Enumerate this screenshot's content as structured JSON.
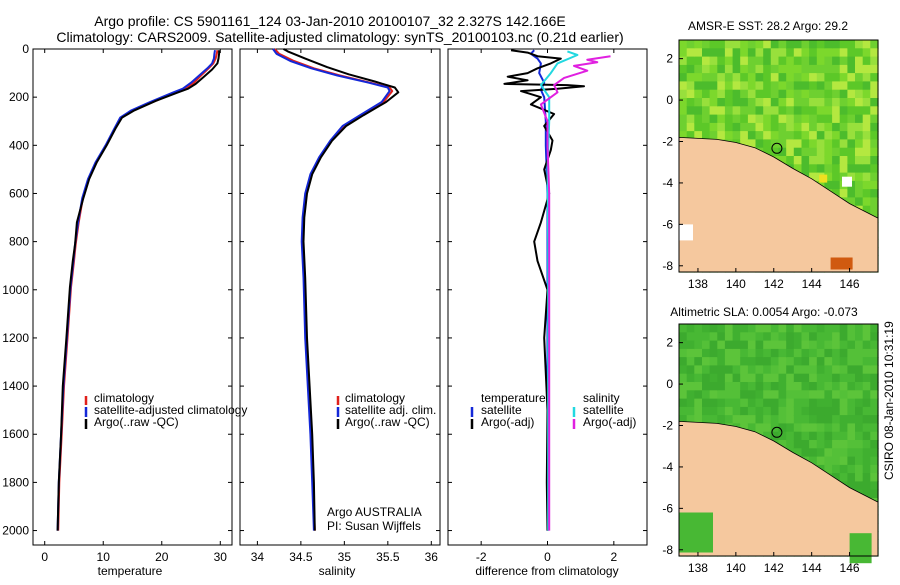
{
  "header": {
    "line1": "Argo profile: CS 5901161_124 03-Jan-2010 20100107_32 2.327S 142.166E",
    "line2": "Climatology: CARS2009. Satellite-adjusted climatology: synTS_20100103.nc (0.21d earlier)"
  },
  "footer": {
    "credit": "CSIRO 08-Jan-2010 10:31:19"
  },
  "colors": {
    "climatology": "#e0201c",
    "satellite": "#1428d8",
    "argo": "#000000",
    "sal_satellite": "#22d8e0",
    "sal_argo": "#e020e0",
    "land": "#f5c89e"
  },
  "chart_data": [
    {
      "type": "line",
      "xlabel": "temperature",
      "ylabel": "",
      "xlim": [
        -2,
        32
      ],
      "ylim": [
        2060,
        0
      ],
      "xticks": [
        0,
        10,
        20,
        30
      ],
      "yticks": [
        0,
        200,
        400,
        600,
        800,
        1000,
        1200,
        1400,
        1600,
        1800,
        2000
      ],
      "legend": [
        "climatology",
        "satellite-adjusted climatology",
        "Argo(..raw -QC)"
      ],
      "legend_placement": "lower-right",
      "series": [
        {
          "name": "climatology",
          "color": "#e0201c",
          "points": [
            [
              29.5,
              5
            ],
            [
              29.4,
              20
            ],
            [
              29.2,
              40
            ],
            [
              28.8,
              60
            ],
            [
              28,
              80
            ],
            [
              26.7,
              110
            ],
            [
              25.5,
              140
            ],
            [
              24,
              165
            ],
            [
              22.5,
              180
            ],
            [
              18.5,
              220
            ],
            [
              15,
              255
            ],
            [
              13,
              285
            ],
            [
              12,
              330
            ],
            [
              10.5,
              400
            ],
            [
              8.8,
              470
            ],
            [
              7.5,
              540
            ],
            [
              6.5,
              620
            ],
            [
              5.8,
              720
            ],
            [
              5.3,
              810
            ],
            [
              5,
              880
            ],
            [
              4.5,
              990
            ],
            [
              3.9,
              1200
            ],
            [
              3.3,
              1400
            ],
            [
              2.9,
              1600
            ],
            [
              2.5,
              1800
            ],
            [
              2.3,
              2000
            ]
          ]
        },
        {
          "name": "satellite-adjusted climatology",
          "color": "#1428d8",
          "points": [
            [
              29.1,
              5
            ],
            [
              29,
              20
            ],
            [
              28.9,
              40
            ],
            [
              28.6,
              60
            ],
            [
              27.8,
              80
            ],
            [
              26.4,
              110
            ],
            [
              25,
              140
            ],
            [
              23.6,
              165
            ],
            [
              22,
              180
            ],
            [
              18,
              220
            ],
            [
              14.8,
              255
            ],
            [
              12.9,
              285
            ],
            [
              11.9,
              330
            ],
            [
              10.4,
              400
            ],
            [
              8.7,
              470
            ],
            [
              7.4,
              540
            ],
            [
              6.4,
              620
            ],
            [
              5.7,
              720
            ],
            [
              5.2,
              810
            ],
            [
              4.9,
              880
            ],
            [
              4.4,
              990
            ],
            [
              3.8,
              1200
            ],
            [
              3.2,
              1400
            ],
            [
              2.8,
              1600
            ],
            [
              2.4,
              1800
            ],
            [
              2.2,
              2000
            ]
          ]
        },
        {
          "name": "Argo(..raw -QC)",
          "color": "#000000",
          "points": [
            [
              29.8,
              5
            ],
            [
              29.8,
              20
            ],
            [
              29.7,
              40
            ],
            [
              29.5,
              60
            ],
            [
              28.6,
              85
            ],
            [
              27.2,
              115
            ],
            [
              25.8,
              145
            ],
            [
              24.5,
              165
            ],
            [
              22.8,
              180
            ],
            [
              19,
              215
            ],
            [
              15.3,
              255
            ],
            [
              13.2,
              285
            ],
            [
              12.1,
              330
            ],
            [
              10.6,
              400
            ],
            [
              8.9,
              470
            ],
            [
              7.6,
              540
            ],
            [
              6.6,
              620
            ],
            [
              5.5,
              720
            ],
            [
              5.2,
              810
            ],
            [
              4.8,
              880
            ],
            [
              4.3,
              990
            ],
            [
              3.7,
              1200
            ],
            [
              3.1,
              1400
            ],
            [
              2.8,
              1600
            ],
            [
              2.4,
              1800
            ],
            [
              2.2,
              2000
            ]
          ]
        }
      ]
    },
    {
      "type": "line",
      "xlabel": "salinity",
      "ylabel": "",
      "xlim": [
        33.8,
        36.1
      ],
      "ylim": [
        2060,
        0
      ],
      "xticks": [
        34,
        34.5,
        35,
        35.5,
        36
      ],
      "xticklabels": [
        "34",
        "34.5",
        "35",
        "35.5",
        "36"
      ],
      "yticks": [
        0,
        200,
        400,
        600,
        800,
        1000,
        1200,
        1400,
        1600,
        1800,
        2000
      ],
      "legend": [
        "climatology",
        "satellite adj. clim.",
        "Argo(..raw -QC)"
      ],
      "legend_placement": "lower-right",
      "annotation": [
        "Argo AUSTRALIA",
        "PI: Susan Wijffels"
      ],
      "series": [
        {
          "name": "climatology",
          "color": "#e0201c",
          "points": [
            [
              34.2,
              0
            ],
            [
              34.25,
              20
            ],
            [
              34.42,
              50
            ],
            [
              34.65,
              80
            ],
            [
              34.95,
              110
            ],
            [
              35.3,
              140
            ],
            [
              35.52,
              160
            ],
            [
              35.55,
              175
            ],
            [
              35.45,
              220
            ],
            [
              35.2,
              275
            ],
            [
              35,
              320
            ],
            [
              34.85,
              380
            ],
            [
              34.72,
              450
            ],
            [
              34.62,
              520
            ],
            [
              34.56,
              600
            ],
            [
              34.53,
              700
            ],
            [
              34.52,
              800
            ],
            [
              34.54,
              950
            ],
            [
              34.56,
              1200
            ],
            [
              34.59,
              1400
            ],
            [
              34.62,
              1600
            ],
            [
              34.64,
              1800
            ],
            [
              34.66,
              2000
            ]
          ]
        },
        {
          "name": "satellite adj. clim.",
          "color": "#1428d8",
          "points": [
            [
              34.18,
              0
            ],
            [
              34.22,
              20
            ],
            [
              34.38,
              50
            ],
            [
              34.62,
              80
            ],
            [
              34.92,
              110
            ],
            [
              35.28,
              140
            ],
            [
              35.5,
              160
            ],
            [
              35.52,
              175
            ],
            [
              35.43,
              220
            ],
            [
              35.18,
              275
            ],
            [
              34.98,
              320
            ],
            [
              34.84,
              380
            ],
            [
              34.71,
              450
            ],
            [
              34.61,
              520
            ],
            [
              34.55,
              600
            ],
            [
              34.52,
              700
            ],
            [
              34.51,
              800
            ],
            [
              34.53,
              950
            ],
            [
              34.55,
              1200
            ],
            [
              34.58,
              1400
            ],
            [
              34.61,
              1600
            ],
            [
              34.63,
              1800
            ],
            [
              34.65,
              2000
            ]
          ]
        },
        {
          "name": "Argo(..raw -QC)",
          "color": "#000000",
          "points": [
            [
              34.3,
              0
            ],
            [
              34.35,
              10
            ],
            [
              34.55,
              40
            ],
            [
              34.8,
              75
            ],
            [
              35.05,
              105
            ],
            [
              35.35,
              135
            ],
            [
              35.58,
              160
            ],
            [
              35.62,
              180
            ],
            [
              35.48,
              220
            ],
            [
              35.22,
              275
            ],
            [
              35.02,
              320
            ],
            [
              34.86,
              380
            ],
            [
              34.73,
              450
            ],
            [
              34.63,
              520
            ],
            [
              34.57,
              600
            ],
            [
              34.54,
              700
            ],
            [
              34.53,
              800
            ],
            [
              34.55,
              950
            ],
            [
              34.57,
              1200
            ],
            [
              34.6,
              1400
            ],
            [
              34.63,
              1600
            ],
            [
              34.65,
              1800
            ],
            [
              34.66,
              2000
            ]
          ]
        }
      ]
    },
    {
      "type": "line",
      "xlabel": "difference from climatology",
      "ylabel": "",
      "xlim": [
        -3,
        3
      ],
      "ylim": [
        2060,
        0
      ],
      "xticks": [
        -2,
        0,
        2
      ],
      "yticks": [
        0,
        200,
        400,
        600,
        800,
        1000,
        1200,
        1400,
        1600,
        1800,
        2000
      ],
      "legend_headers": [
        "temperature",
        "salinity"
      ],
      "legend": [
        "satellite",
        "Argo(-adj)",
        "satellite",
        "Argo(-adj)"
      ],
      "legend_placement": "lower-center",
      "series": [
        {
          "name": "satellite",
          "color": "#1428d8",
          "points": [
            [
              -0.4,
              5
            ],
            [
              -0.5,
              20
            ],
            [
              -0.3,
              40
            ],
            [
              -0.2,
              60
            ],
            [
              -0.25,
              100
            ],
            [
              -0.1,
              140
            ],
            [
              -0.2,
              170
            ],
            [
              -0.1,
              200
            ],
            [
              -0.05,
              300
            ],
            [
              -0.05,
              400
            ],
            [
              0,
              600
            ],
            [
              0,
              1000
            ],
            [
              0,
              1400
            ],
            [
              0,
              2000
            ]
          ]
        },
        {
          "name": "Argo(-adj)",
          "color": "#000000",
          "points": [
            [
              -1.1,
              5
            ],
            [
              -0.6,
              15
            ],
            [
              -0.3,
              30
            ],
            [
              0.4,
              40
            ],
            [
              0.1,
              60
            ],
            [
              -0.3,
              80
            ],
            [
              -0.6,
              100
            ],
            [
              -1.2,
              115
            ],
            [
              -0.6,
              130
            ],
            [
              -1.3,
              145
            ],
            [
              0.6,
              150
            ],
            [
              1.1,
              155
            ],
            [
              0.3,
              165
            ],
            [
              -0.8,
              175
            ],
            [
              -0.2,
              200
            ],
            [
              -0.5,
              230
            ],
            [
              0.2,
              270
            ],
            [
              -0.1,
              320
            ],
            [
              0.15,
              380
            ],
            [
              0.1,
              420
            ],
            [
              -0.1,
              500
            ],
            [
              0.05,
              600
            ],
            [
              -0.2,
              720
            ],
            [
              -0.4,
              800
            ],
            [
              -0.3,
              880
            ],
            [
              0,
              1000
            ],
            [
              -0.1,
              1200
            ],
            [
              0,
              1500
            ],
            [
              -0.02,
              1800
            ],
            [
              0,
              2000
            ]
          ]
        },
        {
          "name": "satellite",
          "color": "#22d8e0",
          "points": [
            [
              0.6,
              10
            ],
            [
              0.9,
              25
            ],
            [
              0.3,
              60
            ],
            [
              0.1,
              100
            ],
            [
              -0.2,
              150
            ],
            [
              0.05,
              200
            ],
            [
              0.05,
              300
            ],
            [
              0,
              500
            ],
            [
              0.02,
              800
            ],
            [
              0.02,
              1200
            ],
            [
              0.02,
              1600
            ],
            [
              0.02,
              2000
            ]
          ]
        },
        {
          "name": "Argo(-adj)",
          "color": "#e020e0",
          "points": [
            [
              1.9,
              30
            ],
            [
              1.2,
              45
            ],
            [
              1.5,
              55
            ],
            [
              0.8,
              70
            ],
            [
              1.2,
              90
            ],
            [
              0.5,
              120
            ],
            [
              0.2,
              150
            ],
            [
              0.3,
              180
            ],
            [
              -0.2,
              230
            ],
            [
              0,
              300
            ],
            [
              0,
              400
            ],
            [
              0.05,
              600
            ],
            [
              0.05,
              900
            ],
            [
              0.05,
              1300
            ],
            [
              0.05,
              1700
            ],
            [
              0.05,
              2000
            ]
          ]
        }
      ]
    },
    {
      "type": "heatmap",
      "title": "AMSR-E SST: 28.2 Argo: 29.2",
      "xlim": [
        137,
        147.5
      ],
      "ylim": [
        -8.3,
        2.9
      ],
      "xticks": [
        138,
        140,
        142,
        144,
        146
      ],
      "yticks": [
        2,
        0,
        -2,
        -4,
        -6,
        -8
      ],
      "marker": {
        "lon": 142.166,
        "lat": -2.327
      }
    },
    {
      "type": "heatmap",
      "title": "Altimetric SLA: 0.0054 Argo: -0.073",
      "xlim": [
        137,
        147.5
      ],
      "ylim": [
        -8.3,
        2.9
      ],
      "xticks": [
        138,
        140,
        142,
        144,
        146
      ],
      "yticks": [
        2,
        0,
        -2,
        -4,
        -6,
        -8
      ],
      "marker": {
        "lon": 142.166,
        "lat": -2.327
      }
    }
  ]
}
